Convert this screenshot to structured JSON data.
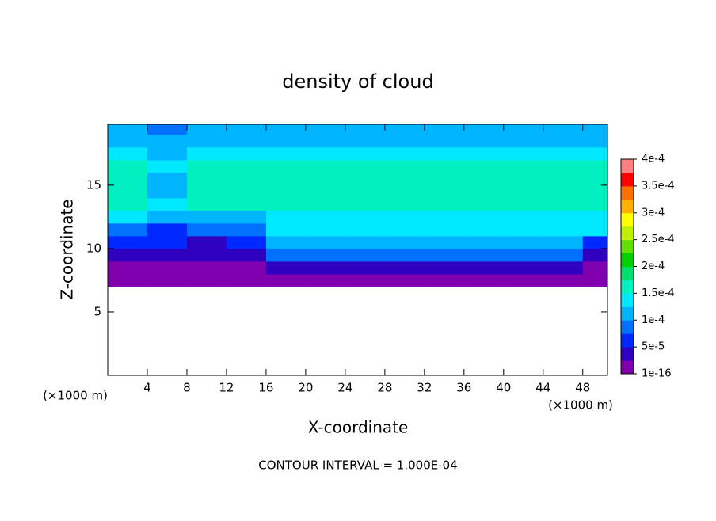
{
  "chart_data": {
    "type": "contour",
    "title": "density of cloud",
    "x_label": "X-coordinate",
    "y_label": "Z-coordinate",
    "x_unit": "(×1000 m)",
    "y_unit": "(×1000 m)",
    "annotation": "CONTOUR INTERVAL = 1.000E-04",
    "xlim": [
      0,
      50.5
    ],
    "ylim": [
      0,
      19.8
    ],
    "xticks": [
      4,
      8,
      12,
      16,
      20,
      24,
      28,
      32,
      36,
      40,
      44,
      48
    ],
    "yticks": [
      5,
      10,
      15
    ],
    "x": [
      0,
      4,
      8,
      12,
      16,
      20,
      24,
      28,
      32,
      36,
      40,
      44,
      48
    ],
    "z": [
      7,
      8,
      9,
      10,
      11,
      12,
      13,
      14,
      15,
      16,
      17,
      18,
      19
    ],
    "values": [
      [
        1.5e-05,
        1.5e-05,
        1.5e-05,
        1.5e-05,
        1.5e-05,
        1.5e-05,
        1.5e-05,
        1.5e-05,
        1.5e-05,
        1.5e-05,
        1.5e-05,
        1.5e-05,
        1.5e-05
      ],
      [
        2e-05,
        2e-05,
        2e-05,
        2e-05,
        5e-05,
        5e-05,
        5e-05,
        5e-05,
        5e-05,
        5e-05,
        5e-05,
        5e-05,
        2e-05
      ],
      [
        4e-05,
        4e-05,
        4e-05,
        4e-05,
        8e-05,
        8e-05,
        8e-05,
        8e-05,
        8e-05,
        8e-05,
        8e-05,
        8e-05,
        3e-05
      ],
      [
        6e-05,
        6e-05,
        5e-05,
        7e-05,
        0.00011,
        0.00011,
        0.00011,
        0.00011,
        0.00011,
        0.00011,
        0.00011,
        0.00011,
        6e-05
      ],
      [
        8e-05,
        7e-05,
        9e-05,
        9e-05,
        0.00013,
        0.00013,
        0.00013,
        0.00013,
        0.00013,
        0.00013,
        0.00013,
        0.00013,
        0.00013
      ],
      [
        0.00014,
        0.00012,
        0.00012,
        0.00012,
        0.000145,
        0.000145,
        0.000145,
        0.000145,
        0.000145,
        0.000145,
        0.000145,
        0.000145,
        0.000145
      ],
      [
        0.00016,
        0.00014,
        0.00016,
        0.00016,
        0.00016,
        0.00016,
        0.00016,
        0.00016,
        0.00016,
        0.00016,
        0.00016,
        0.00016,
        0.00016
      ],
      [
        0.00016,
        0.00012,
        0.00016,
        0.00016,
        0.00016,
        0.00016,
        0.00016,
        0.00016,
        0.00016,
        0.00016,
        0.00016,
        0.00016,
        0.00016
      ],
      [
        0.00016,
        0.00012,
        0.00016,
        0.00016,
        0.00016,
        0.00016,
        0.00016,
        0.00016,
        0.00016,
        0.00016,
        0.00016,
        0.00016,
        0.00016
      ],
      [
        0.00016,
        0.00014,
        0.00016,
        0.00016,
        0.00016,
        0.00016,
        0.00016,
        0.00016,
        0.00016,
        0.00016,
        0.00016,
        0.00016,
        0.00016
      ],
      [
        0.00014,
        0.00012,
        0.00014,
        0.00014,
        0.00014,
        0.00014,
        0.00014,
        0.00014,
        0.00014,
        0.00014,
        0.00014,
        0.00014,
        0.00014
      ],
      [
        0.00012,
        0.00011,
        0.00012,
        0.00012,
        0.00012,
        0.00012,
        0.00012,
        0.00012,
        0.00012,
        0.00012,
        0.00012,
        0.00012,
        0.00012
      ],
      [
        0.00011,
        0.0001,
        0.00011,
        0.00011,
        0.00011,
        0.00011,
        0.00011,
        0.00011,
        0.00011,
        0.00011,
        0.00011,
        0.00011,
        0.00011
      ]
    ],
    "colorbar": {
      "lim": [
        1e-16,
        0.0004
      ],
      "ticks": [
        {
          "value": 1e-16,
          "label": "1e-16"
        },
        {
          "value": 5e-05,
          "label": "5e-5"
        },
        {
          "value": 0.0001,
          "label": "1e-4"
        },
        {
          "value": 0.00015,
          "label": "1.5e-4"
        },
        {
          "value": 0.0002,
          "label": "2e-4"
        },
        {
          "value": 0.00025,
          "label": "2.5e-4"
        },
        {
          "value": 0.0003,
          "label": "3e-4"
        },
        {
          "value": 0.00035,
          "label": "3.5e-4"
        },
        {
          "value": 0.0004,
          "label": "4e-4"
        }
      ],
      "colors": [
        "#8000b0",
        "#3000c0",
        "#0028ff",
        "#0070ff",
        "#00b4ff",
        "#00e8ff",
        "#00f0c0",
        "#00e070",
        "#00d000",
        "#60e000",
        "#c0f000",
        "#ffff00",
        "#ffb000",
        "#ff7000",
        "#ff0000",
        "#ff8080"
      ]
    }
  }
}
